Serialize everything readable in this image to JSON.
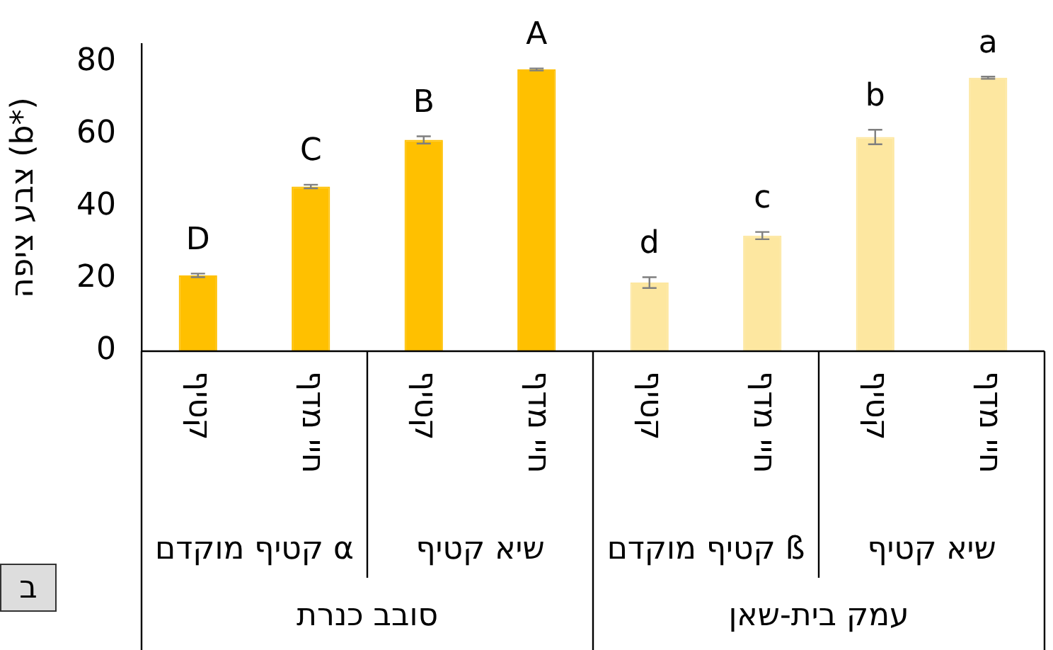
{
  "chart_data": {
    "type": "bar",
    "ylabel": "צבע ציפה (b*)",
    "categories": [
      "קטיף",
      "חיי מדף",
      "קטיף",
      "חיי מדף",
      "קטיף",
      "חיי מדף",
      "קטיף",
      "חיי מדף"
    ],
    "values": [
      21,
      45.6,
      58.5,
      78,
      19,
      32,
      59.3,
      75.7
    ],
    "errors": [
      0.5,
      0.5,
      1,
      0.3,
      1.5,
      1,
      2,
      0.3
    ],
    "colors": [
      "#ffc000",
      "#ffc000",
      "#ffc000",
      "#ffc000",
      "#fde7a0",
      "#fde7a0",
      "#fde7a0",
      "#fde7a0"
    ],
    "value_labels": [
      "D",
      "C",
      "B",
      "A",
      "d",
      "c",
      "b",
      "a"
    ],
    "ylim": [
      0,
      85
    ],
    "yticks": [
      0,
      20,
      40,
      60,
      80
    ],
    "grid": false,
    "legend": false,
    "annotations": [
      "קטיף מוקדם α",
      "שיא קטיף",
      "קטיף מוקדם ß",
      "שיא קטיף",
      "סובב כנרת",
      "עמק בית-שאן",
      "ב"
    ]
  }
}
